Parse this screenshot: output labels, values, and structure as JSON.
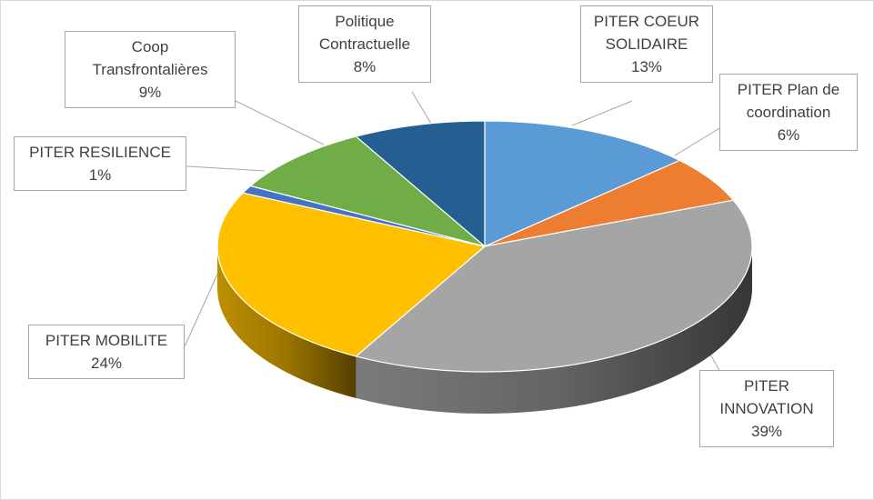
{
  "chart_data": {
    "type": "pie",
    "style": "3d",
    "legend": "none",
    "slices": [
      {
        "label_lines": [
          "PITER COEUR",
          "SOLIDAIRE"
        ],
        "value": 13,
        "value_label": "13%",
        "color": "#5b9bd5"
      },
      {
        "label_lines": [
          "PITER Plan de",
          "coordination"
        ],
        "value": 6,
        "value_label": "6%",
        "color": "#ed7d31"
      },
      {
        "label_lines": [
          "PITER",
          "INNOVATION"
        ],
        "value": 39,
        "value_label": "39%",
        "color": "#a5a5a5"
      },
      {
        "label_lines": [
          "PITER MOBILITE"
        ],
        "value": 24,
        "value_label": "24%",
        "color": "#ffc000"
      },
      {
        "label_lines": [
          "PITER RESILIENCE"
        ],
        "value": 1,
        "value_label": "1%",
        "color": "#4472c4"
      },
      {
        "label_lines": [
          "Coop",
          "Transfrontalières"
        ],
        "value": 9,
        "value_label": "9%",
        "color": "#70ad47"
      },
      {
        "label_lines": [
          "Politique",
          "Contractuelle"
        ],
        "value": 8,
        "value_label": "8%",
        "color": "#255e91"
      }
    ]
  }
}
